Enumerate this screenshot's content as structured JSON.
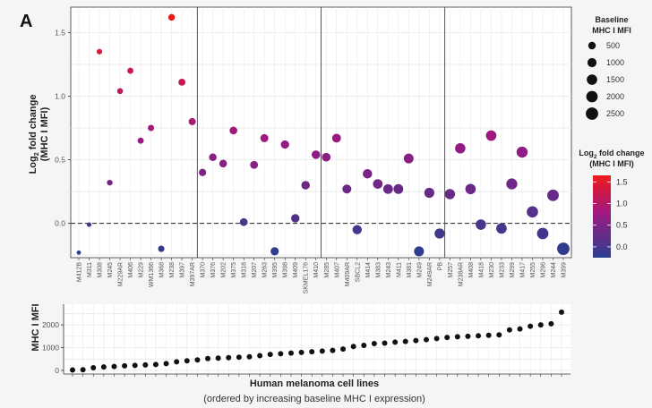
{
  "figure": {
    "panel_label": "A",
    "top_ylabel_line1": "Log2 fold change",
    "top_ylabel_line2": "(MHC I MFI)",
    "bottom_ylabel": "MHC I MFI",
    "xlabel": "Human melanoma cell lines",
    "xsub": "(ordered by increasing baseline MHC I expression)",
    "legend_size_title_1": "Baseline",
    "legend_size_title_2": "MHC I MFI",
    "legend_color_title_1": "Log2 fold change",
    "legend_color_title_2": "(MHC I MFI)"
  },
  "colors": {
    "low": "#2c3e8f",
    "mid": "#a01880",
    "high": "#f01a1a",
    "grid": "#e5e5e5"
  },
  "chart_data": [
    {
      "type": "scatter",
      "ylabel": "Log2 fold change (MHC I MFI)",
      "ylim": [
        -0.27,
        1.7
      ],
      "yticks": [
        0.0,
        0.5,
        1.0,
        1.5
      ],
      "yticklabels": [
        "0.0",
        "0.5",
        "1.0",
        "1.5"
      ],
      "reference_line": 0,
      "grid": true,
      "categories": [
        "M412B",
        "M311",
        "M308",
        "M245",
        "M229AR",
        "M406",
        "M229",
        "WM1366",
        "M368",
        "M238",
        "M397",
        "M397AR",
        "M370",
        "M376",
        "M202",
        "M375",
        "M318",
        "M207",
        "M263",
        "M395",
        "M398",
        "M409",
        "SKMEL176",
        "M410",
        "M285",
        "M407",
        "M409AR",
        "SBCL2",
        "M414",
        "M383",
        "M243",
        "M411",
        "M381",
        "M249",
        "M249AR",
        "PB",
        "M257",
        "M238AR",
        "M408",
        "M418",
        "M230",
        "M233",
        "M299",
        "M417",
        "M255",
        "M296",
        "M244",
        "M399"
      ],
      "values": [
        -0.23,
        -0.01,
        1.35,
        0.32,
        1.04,
        1.2,
        0.65,
        0.75,
        -0.2,
        1.62,
        1.11,
        0.8,
        0.4,
        0.52,
        0.47,
        0.73,
        0.01,
        0.46,
        0.67,
        -0.22,
        0.62,
        0.04,
        0.3,
        0.54,
        0.52,
        0.67,
        0.27,
        -0.05,
        0.39,
        0.31,
        0.27,
        0.27,
        0.51,
        -0.22,
        0.24,
        -0.08,
        0.23,
        0.59,
        0.27,
        -0.01,
        0.69,
        -0.04,
        0.31,
        0.56,
        0.09,
        -0.08,
        0.22,
        -0.2
      ],
      "baseline": [
        20,
        30,
        120,
        150,
        170,
        200,
        220,
        240,
        260,
        300,
        380,
        420,
        460,
        520,
        540,
        560,
        580,
        600,
        650,
        700,
        730,
        760,
        790,
        820,
        850,
        880,
        940,
        1050,
        1100,
        1180,
        1200,
        1240,
        1270,
        1310,
        1350,
        1400,
        1450,
        1480,
        1500,
        1520,
        1540,
        1560,
        1780,
        1820,
        1940,
        2000,
        2050,
        2560
      ],
      "vertical_dividers_after_index": [
        11,
        23,
        35
      ],
      "legend_size": {
        "title": "Baseline MHC I MFI",
        "values": [
          500,
          1000,
          1500,
          2000,
          2500
        ],
        "labels": [
          "500",
          "1000",
          "1500",
          "2000",
          "2500"
        ]
      },
      "legend_color": {
        "title": "Log2 fold change (MHC I MFI)",
        "values": [
          1.5,
          1.0,
          0.5,
          0.0
        ],
        "labels": [
          "1.5",
          "1.0",
          "0.5",
          "0.0"
        ]
      }
    },
    {
      "type": "scatter",
      "ylabel": "MHC I MFI",
      "xlabel": "Human melanoma cell lines",
      "ylim": [
        0,
        2750
      ],
      "yticks": [
        0,
        1000,
        2000
      ],
      "yticklabels": [
        "0",
        "1000",
        "2000"
      ],
      "grid": true,
      "values": [
        20,
        30,
        120,
        150,
        170,
        200,
        220,
        240,
        260,
        300,
        380,
        420,
        460,
        520,
        540,
        560,
        580,
        600,
        650,
        700,
        730,
        760,
        790,
        820,
        850,
        880,
        940,
        1050,
        1100,
        1180,
        1200,
        1240,
        1270,
        1310,
        1350,
        1400,
        1450,
        1480,
        1500,
        1520,
        1540,
        1560,
        1780,
        1820,
        1940,
        2000,
        2050,
        2560
      ]
    }
  ]
}
